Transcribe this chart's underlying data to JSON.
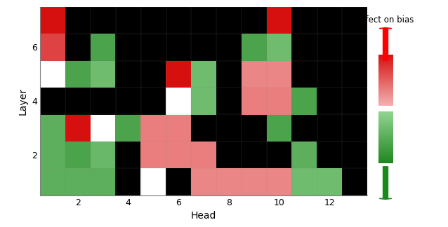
{
  "xlabel": "Head",
  "ylabel": "Layer",
  "colorbar_title": "Effect on bias",
  "grid_rows": 7,
  "grid_cols": 13,
  "grid": [
    [
      1.0,
      0.0,
      0.0,
      0.0,
      0.0,
      0.0,
      0.0,
      0.0,
      0.0,
      1.0,
      0.0,
      0.0,
      0.0
    ],
    [
      0.7,
      0.0,
      -0.65,
      0.0,
      0.0,
      0.0,
      0.0,
      0.0,
      -0.65,
      -0.35,
      0.0,
      0.0,
      0.0
    ],
    [
      0.02,
      -0.65,
      -0.35,
      0.0,
      0.0,
      1.0,
      -0.35,
      0.0,
      0.3,
      0.3,
      0.0,
      0.0,
      0.0
    ],
    [
      0.0,
      0.0,
      0.0,
      0.0,
      0.0,
      0.02,
      -0.35,
      0.0,
      0.35,
      0.35,
      -0.65,
      0.0,
      0.0
    ],
    [
      -0.5,
      1.0,
      0.02,
      -0.65,
      0.35,
      0.35,
      0.0,
      0.0,
      0.0,
      -0.65,
      0.0,
      0.0,
      0.0
    ],
    [
      -0.5,
      -0.65,
      -0.4,
      0.0,
      0.35,
      0.35,
      0.35,
      0.0,
      0.0,
      0.0,
      -0.5,
      0.0,
      0.0
    ],
    [
      -0.5,
      -0.5,
      -0.5,
      0.0,
      0.02,
      0.0,
      0.3,
      0.3,
      0.3,
      0.3,
      -0.35,
      -0.35,
      0.0
    ]
  ],
  "xtick_vals": [
    2,
    4,
    6,
    8,
    10,
    12
  ],
  "ytick_vals": [
    2,
    4,
    6
  ],
  "colors": {
    "red_full": [
      0.84,
      0.06,
      0.06
    ],
    "red_light": [
      0.96,
      0.73,
      0.73
    ],
    "green_full": [
      0.13,
      0.53,
      0.13
    ],
    "green_light": [
      0.6,
      0.85,
      0.6
    ],
    "black": [
      0.0,
      0.0,
      0.0
    ],
    "white": [
      1.0,
      1.0,
      1.0
    ]
  }
}
